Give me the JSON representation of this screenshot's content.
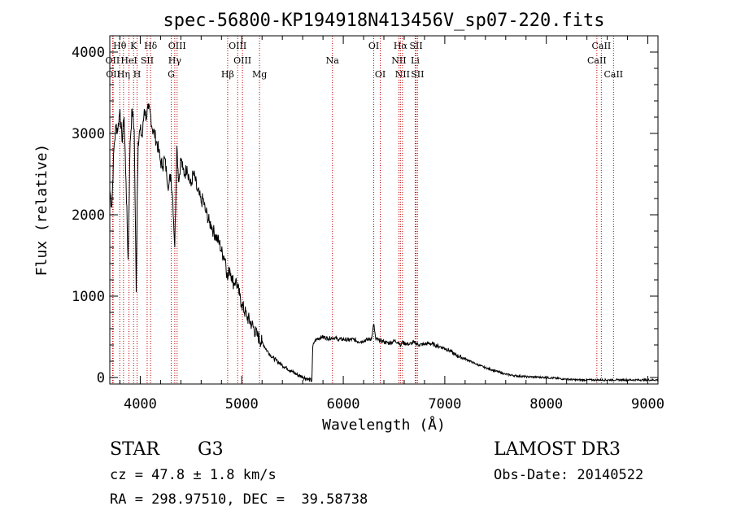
{
  "chart_data": {
    "type": "line",
    "title": "spec-56800-KP194918N413456V_sp07-220.fits",
    "xlabel": "Wavelength (Å)",
    "ylabel": "Flux (relative)",
    "xlim": [
      3700,
      9100
    ],
    "ylim": [
      -80,
      4200
    ],
    "xticks": [
      4000,
      5000,
      6000,
      7000,
      8000,
      9000
    ],
    "yticks": [
      0,
      1000,
      2000,
      3000,
      4000
    ],
    "series": [
      {
        "name": "flux",
        "x": [
          3700,
          3720,
          3740,
          3760,
          3780,
          3800,
          3820,
          3840,
          3860,
          3880,
          3900,
          3920,
          3940,
          3960,
          3970,
          3980,
          4000,
          4020,
          4040,
          4060,
          4080,
          4100,
          4120,
          4140,
          4160,
          4180,
          4200,
          4220,
          4240,
          4260,
          4280,
          4300,
          4320,
          4340,
          4360,
          4380,
          4400,
          4420,
          4440,
          4460,
          4480,
          4500,
          4520,
          4540,
          4560,
          4580,
          4600,
          4620,
          4640,
          4660,
          4680,
          4700,
          4720,
          4740,
          4760,
          4780,
          4800,
          4820,
          4840,
          4860,
          4880,
          4900,
          4920,
          4940,
          4960,
          4980,
          5000,
          5050,
          5100,
          5150,
          5200,
          5250,
          5300,
          5350,
          5400,
          5450,
          5500,
          5550,
          5600,
          5650,
          5690,
          5700,
          5710,
          5720,
          5750,
          5800,
          5850,
          5900,
          5950,
          6000,
          6050,
          6100,
          6150,
          6200,
          6250,
          6280,
          6300,
          6320,
          6350,
          6400,
          6450,
          6500,
          6550,
          6563,
          6580,
          6600,
          6650,
          6700,
          6750,
          6800,
          6850,
          6900,
          6950,
          7000,
          7050,
          7100,
          7200,
          7300,
          7400,
          7500,
          7600,
          7700,
          7800,
          7900,
          8000,
          8100,
          8200,
          8300,
          8400,
          8500,
          8600,
          8700,
          8800,
          8900,
          9000,
          9100
        ],
        "y": [
          2300,
          2100,
          2800,
          3100,
          3050,
          3300,
          2900,
          3200,
          2400,
          1450,
          2900,
          3300,
          3050,
          1050,
          2200,
          2900,
          3050,
          2950,
          3300,
          3200,
          3300,
          3250,
          3050,
          3000,
          2900,
          2800,
          2650,
          2600,
          2700,
          2500,
          2350,
          2500,
          2200,
          1600,
          2850,
          2400,
          2700,
          2550,
          2500,
          2600,
          2450,
          2350,
          2500,
          2450,
          2300,
          2250,
          2150,
          2200,
          2050,
          2000,
          1900,
          1880,
          1800,
          1750,
          1700,
          1650,
          1550,
          1500,
          1450,
          1200,
          1350,
          1250,
          1150,
          1200,
          1100,
          1000,
          900,
          750,
          650,
          520,
          430,
          330,
          250,
          200,
          150,
          110,
          70,
          30,
          10,
          -20,
          -40,
          380,
          420,
          450,
          480,
          500,
          480,
          490,
          470,
          470,
          460,
          470,
          440,
          450,
          470,
          480,
          660,
          470,
          460,
          440,
          420,
          450,
          430,
          380,
          440,
          420,
          410,
          430,
          400,
          410,
          420,
          400,
          380,
          360,
          330,
          280,
          230,
          170,
          120,
          80,
          40,
          20,
          10,
          5,
          0,
          -10,
          -20,
          -30,
          -30,
          -30,
          -30,
          -30,
          -30,
          -30,
          -30,
          -30
        ]
      }
    ],
    "line_markers": [
      {
        "label": "Hθ",
        "wavelength": 3798,
        "row": 0
      },
      {
        "label": "K",
        "wavelength": 3934,
        "row": 0
      },
      {
        "label": "Hδ",
        "wavelength": 4102,
        "row": 0
      },
      {
        "label": "OIII",
        "wavelength": 4363,
        "row": 0
      },
      {
        "label": "OIII",
        "wavelength": 4959,
        "row": 0
      },
      {
        "label": "OI",
        "wavelength": 6300,
        "row": 0
      },
      {
        "label": "Hα",
        "wavelength": 6563,
        "row": 0
      },
      {
        "label": "SII",
        "wavelength": 6717,
        "row": 0
      },
      {
        "label": "CaII",
        "wavelength": 8542,
        "row": 0
      },
      {
        "label": "OII",
        "wavelength": 3727,
        "row": 1
      },
      {
        "label": "HeI",
        "wavelength": 3889,
        "row": 1
      },
      {
        "label": "SII",
        "wavelength": 4068,
        "row": 1
      },
      {
        "label": "Hγ",
        "wavelength": 4340,
        "row": 1
      },
      {
        "label": "OIII",
        "wavelength": 5007,
        "row": 1
      },
      {
        "label": "Na",
        "wavelength": 5893,
        "row": 1
      },
      {
        "label": "NII",
        "wavelength": 6548,
        "row": 1
      },
      {
        "label": "Li",
        "wavelength": 6708,
        "row": 1
      },
      {
        "label": "CaII",
        "wavelength": 8498,
        "row": 1
      },
      {
        "label": "OII",
        "wavelength": 3733,
        "row": 2
      },
      {
        "label": "Hη",
        "wavelength": 3835,
        "row": 2
      },
      {
        "label": "H",
        "wavelength": 3969,
        "row": 2
      },
      {
        "label": "G",
        "wavelength": 4305,
        "row": 2
      },
      {
        "label": "Hβ",
        "wavelength": 4861,
        "row": 2
      },
      {
        "label": "Mg",
        "wavelength": 5175,
        "row": 2
      },
      {
        "label": "OI",
        "wavelength": 6364,
        "row": 2
      },
      {
        "label": "NII",
        "wavelength": 6583,
        "row": 2
      },
      {
        "label": "SII",
        "wavelength": 6731,
        "row": 2
      },
      {
        "label": "CaII",
        "wavelength": 8662,
        "row": 2
      }
    ]
  },
  "info": {
    "object_class": "STAR",
    "subclass": "G3",
    "survey": "LAMOST DR3",
    "cz": "cz = 47.8 ± 1.8 km/s",
    "obs_date": "Obs-Date: 20140522",
    "radec": "RA = 298.97510, DEC =  39.58738"
  },
  "colors": {
    "marker_line": "#c00000",
    "axis": "#000000",
    "spectrum": "#000000"
  }
}
